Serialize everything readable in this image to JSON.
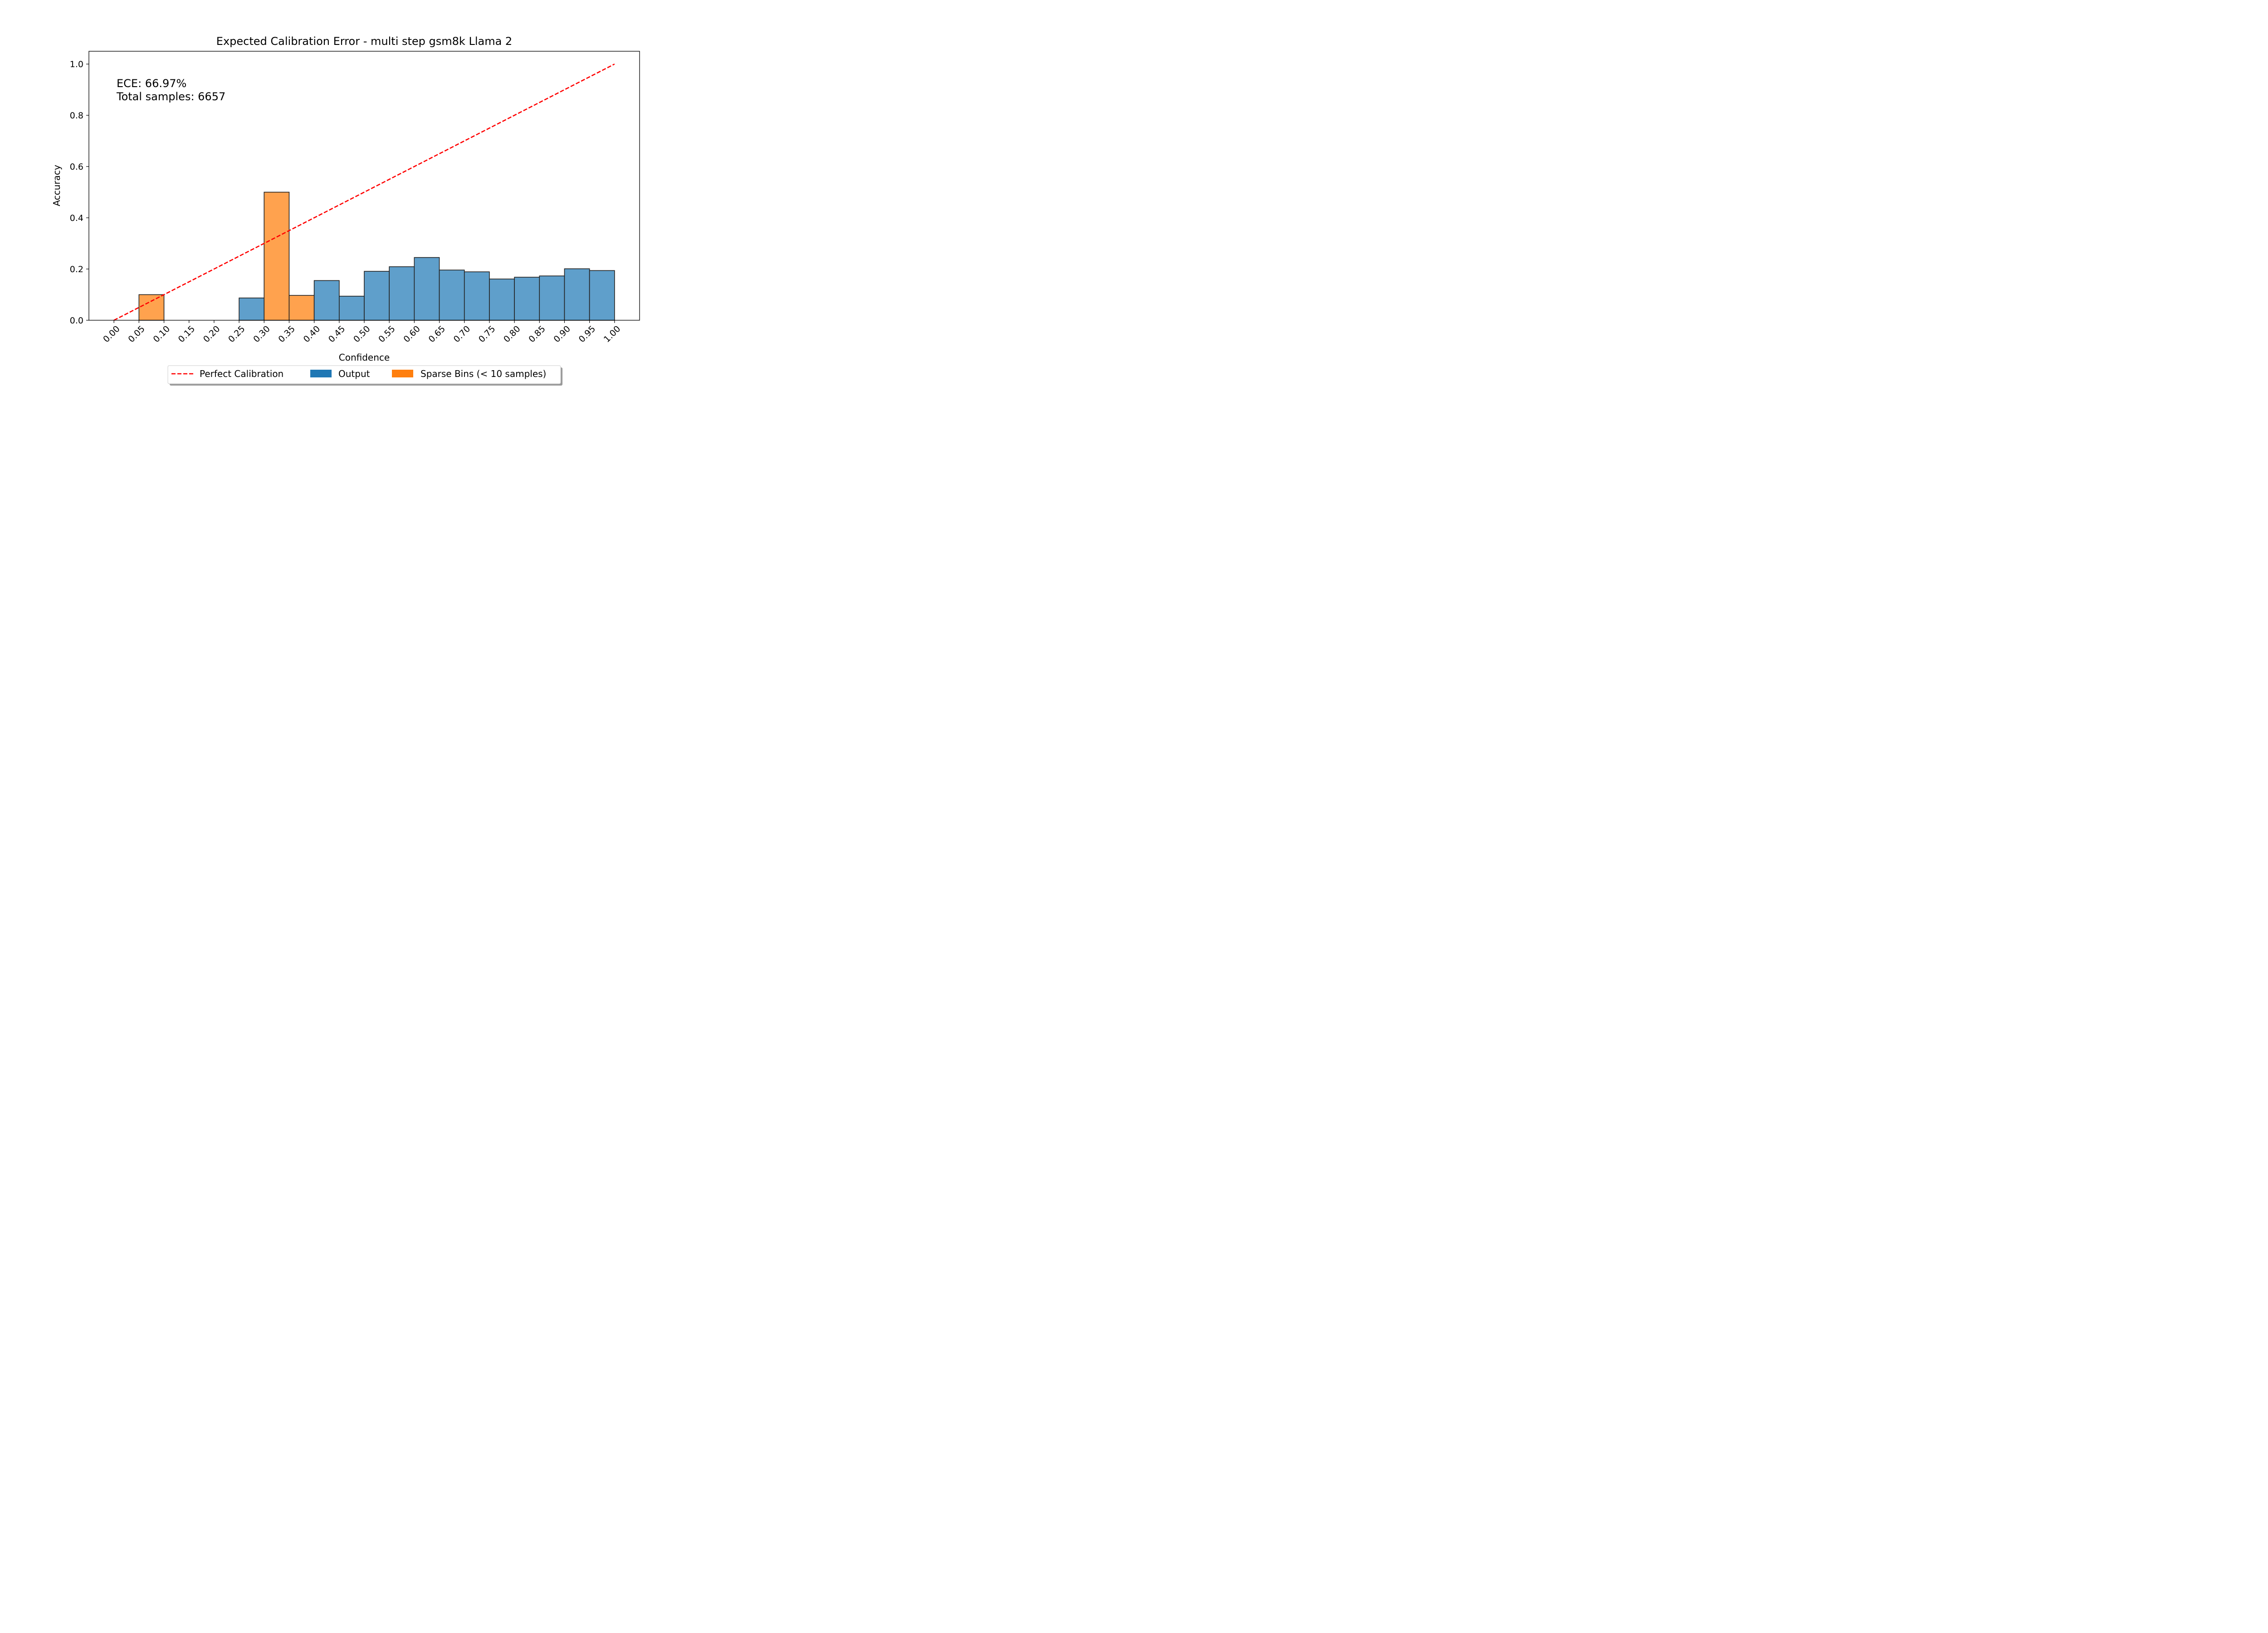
{
  "chart_data": {
    "type": "bar",
    "title": "Expected Calibration Error - multi step gsm8k Llama 2",
    "xlabel": "Confidence",
    "ylabel": "Accuracy",
    "xlim": [
      -0.05,
      1.05
    ],
    "ylim": [
      0,
      1.05
    ],
    "x_ticks": [
      "0.00",
      "0.05",
      "0.10",
      "0.15",
      "0.20",
      "0.25",
      "0.30",
      "0.35",
      "0.40",
      "0.45",
      "0.50",
      "0.55",
      "0.60",
      "0.65",
      "0.70",
      "0.75",
      "0.80",
      "0.85",
      "0.90",
      "0.95",
      "1.00"
    ],
    "y_ticks": [
      "0.0",
      "0.2",
      "0.4",
      "0.6",
      "0.8",
      "1.0"
    ],
    "grid": false,
    "legend_position": "bottom-center",
    "annotation": {
      "ece": "ECE: 66.97%",
      "total": "Total samples: 6657"
    },
    "bin_width": 0.05,
    "bins": [
      {
        "left": 0.0,
        "value": 0.0,
        "series": "output"
      },
      {
        "left": 0.05,
        "value": 0.1,
        "series": "sparse"
      },
      {
        "left": 0.1,
        "value": 0.0,
        "series": "output"
      },
      {
        "left": 0.15,
        "value": 0.0,
        "series": "output"
      },
      {
        "left": 0.2,
        "value": 0.0,
        "series": "output"
      },
      {
        "left": 0.25,
        "value": 0.087,
        "series": "output"
      },
      {
        "left": 0.3,
        "value": 0.5,
        "series": "sparse"
      },
      {
        "left": 0.35,
        "value": 0.097,
        "series": "sparse"
      },
      {
        "left": 0.4,
        "value": 0.155,
        "series": "output"
      },
      {
        "left": 0.45,
        "value": 0.094,
        "series": "output"
      },
      {
        "left": 0.5,
        "value": 0.191,
        "series": "output"
      },
      {
        "left": 0.55,
        "value": 0.209,
        "series": "output"
      },
      {
        "left": 0.6,
        "value": 0.245,
        "series": "output"
      },
      {
        "left": 0.65,
        "value": 0.196,
        "series": "output"
      },
      {
        "left": 0.7,
        "value": 0.189,
        "series": "output"
      },
      {
        "left": 0.75,
        "value": 0.161,
        "series": "output"
      },
      {
        "left": 0.8,
        "value": 0.168,
        "series": "output"
      },
      {
        "left": 0.85,
        "value": 0.173,
        "series": "output"
      },
      {
        "left": 0.9,
        "value": 0.201,
        "series": "output"
      },
      {
        "left": 0.95,
        "value": 0.194,
        "series": "output"
      }
    ],
    "perfect_calibration": {
      "x": [
        0,
        1
      ],
      "y": [
        0,
        1
      ]
    },
    "legend": [
      {
        "key": "perfect",
        "label": "Perfect Calibration",
        "color": "#ff0000",
        "style": "dashed-line"
      },
      {
        "key": "output",
        "label": "Output",
        "color": "#1f77b4",
        "style": "patch"
      },
      {
        "key": "sparse",
        "label": "Sparse Bins (< 10 samples)",
        "color": "#ff7f0e",
        "style": "patch"
      }
    ],
    "colors": {
      "output_fill": "#5f9fcb",
      "sparse_fill": "#ffa24e",
      "bar_edge": "#222222",
      "line": "#ff0000"
    }
  }
}
